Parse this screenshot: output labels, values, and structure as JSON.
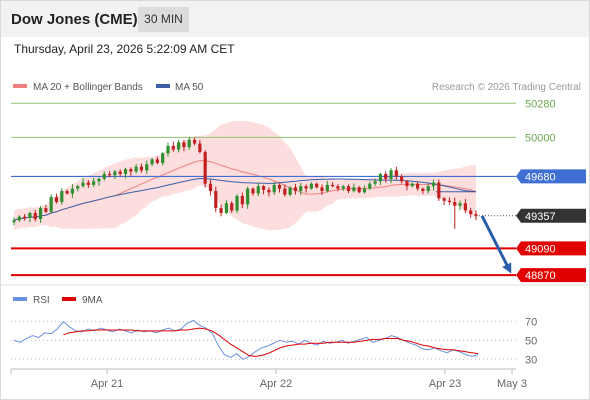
{
  "header": {
    "title": "Dow Jones (CME)",
    "period": "30 MIN",
    "datetime": "Thursday, April 23, 2026 5:22:09 AM CET"
  },
  "legend": {
    "ma20": "MA 20 + Bollinger Bands",
    "ma50": "MA 50",
    "credit": "Research © 2026 Trading Central",
    "rsi": "RSI",
    "rsi_ma": "9MA"
  },
  "colors": {
    "green_level": "#8fc070",
    "blue_level": "#3f6fd2",
    "red_level": "#e00000",
    "current": "#333333",
    "candle_up": "#2f8f2f",
    "candle_down": "#c02020",
    "bollinger": "#fbd3d3",
    "ma20": "#f08080",
    "ma50": "#3c5fa8",
    "rsi": "#6a8fdc",
    "rsi_ma": "#e00000",
    "arrow": "#2a5ea8"
  },
  "chart_data": [
    {
      "type": "candlestick",
      "name": "price",
      "y_range": [
        48830,
        50340
      ],
      "x_ticks": [
        "Apr 21",
        "Apr 22",
        "Apr 23",
        "May 3"
      ],
      "levels": [
        {
          "value": 50280,
          "label": "50280",
          "kind": "resistance"
        },
        {
          "value": 50000,
          "label": "50000",
          "kind": "resistance"
        },
        {
          "value": 49680,
          "label": "49680",
          "kind": "pivot"
        },
        {
          "value": 49357,
          "label": "49357",
          "kind": "current"
        },
        {
          "value": 49090,
          "label": "49090",
          "kind": "support"
        },
        {
          "value": 48870,
          "label": "48870",
          "kind": "support"
        }
      ],
      "path_points": [
        49320,
        49350,
        49340,
        49380,
        49330,
        49420,
        49390,
        49510,
        49470,
        49560,
        49540,
        49580,
        49600,
        49630,
        49610,
        49640,
        49660,
        49700,
        49690,
        49720,
        49700,
        49740,
        49720,
        49760,
        49730,
        49780,
        49820,
        49790,
        49870,
        49930,
        49900,
        49960,
        49920,
        49980,
        49950,
        49880,
        49620,
        49560,
        49420,
        49380,
        49460,
        49400,
        49520,
        49450,
        49580,
        49540,
        49600,
        49570,
        49550,
        49610,
        49580,
        49530,
        49590,
        49560,
        49600,
        49580,
        49620,
        49590,
        49560,
        49610,
        49600,
        49580,
        49600,
        49560,
        49590,
        49550,
        49580,
        49620,
        49640,
        49700,
        49660,
        49730,
        49680,
        49640,
        49600,
        49620,
        49580,
        49560,
        49600,
        49630,
        49500,
        49480,
        49470,
        49440,
        49460,
        49400,
        49370,
        49357
      ],
      "arrow": {
        "from": 49357,
        "to": 48870
      }
    },
    {
      "type": "line",
      "name": "RSI",
      "y_range": [
        25,
        80
      ],
      "y_ticks": [
        70,
        50,
        30
      ],
      "series": [
        {
          "name": "RSI",
          "values": [
            50,
            48,
            52,
            55,
            53,
            58,
            57,
            62,
            70,
            64,
            60,
            59,
            62,
            60,
            63,
            61,
            59,
            62,
            60,
            58,
            61,
            59,
            60,
            58,
            61,
            63,
            60,
            62,
            68,
            71,
            66,
            63,
            58,
            45,
            35,
            32,
            36,
            30,
            33,
            38,
            42,
            44,
            47,
            50,
            48,
            49,
            46,
            50,
            47,
            45,
            49,
            47,
            48,
            50,
            47,
            49,
            51,
            53,
            48,
            50,
            52,
            55,
            53,
            50,
            47,
            45,
            41,
            40,
            42,
            39,
            37,
            40,
            38,
            35,
            33,
            35
          ]
        },
        {
          "name": "9MA",
          "values": [
            null,
            null,
            null,
            null,
            null,
            null,
            null,
            null,
            56,
            58,
            59,
            60,
            60,
            61,
            61,
            61,
            61,
            61,
            61,
            61,
            60,
            60,
            60,
            60,
            60,
            60,
            60,
            61,
            61,
            62,
            63,
            62,
            60,
            56,
            51,
            46,
            42,
            38,
            34,
            33,
            34,
            36,
            39,
            42,
            44,
            45,
            46,
            46,
            47,
            47,
            47,
            48,
            48,
            48,
            48,
            48,
            49,
            50,
            51,
            51,
            52,
            52,
            52,
            50,
            49,
            47,
            45,
            44,
            42,
            41,
            40,
            40,
            39,
            38,
            37,
            36
          ]
        }
      ]
    }
  ]
}
